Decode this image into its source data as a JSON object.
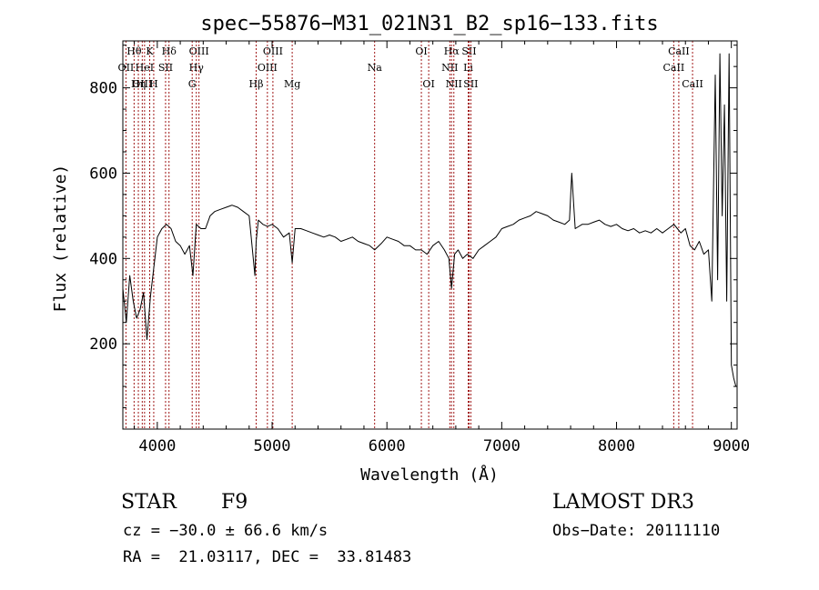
{
  "chart_data": {
    "type": "line",
    "title": "spec−55876−M31_021N31_B2_sp16−133.fits",
    "xlabel": "Wavelength (Å)",
    "ylabel": "Flux (relative)",
    "xlim": [
      3700,
      9050
    ],
    "ylim": [
      0,
      910
    ],
    "xticks": [
      4000,
      5000,
      6000,
      7000,
      8000,
      9000
    ],
    "yticks": [
      200,
      400,
      600,
      800
    ],
    "grid": false,
    "series": [
      {
        "color": "#000000",
        "x": [
          3700,
          3730,
          3760,
          3790,
          3820,
          3850,
          3880,
          3910,
          3940,
          3970,
          4000,
          4040,
          4080,
          4120,
          4160,
          4200,
          4240,
          4280,
          4310,
          4340,
          4380,
          4420,
          4460,
          4500,
          4550,
          4600,
          4650,
          4700,
          4750,
          4800,
          4850,
          4861,
          4880,
          4920,
          4960,
          5000,
          5050,
          5100,
          5150,
          5175,
          5200,
          5250,
          5300,
          5350,
          5400,
          5450,
          5500,
          5550,
          5600,
          5650,
          5700,
          5750,
          5800,
          5850,
          5893,
          5950,
          6000,
          6050,
          6100,
          6150,
          6200,
          6250,
          6300,
          6350,
          6400,
          6450,
          6500,
          6540,
          6563,
          6590,
          6620,
          6660,
          6700,
          6750,
          6800,
          6850,
          6900,
          6950,
          7000,
          7050,
          7100,
          7150,
          7200,
          7250,
          7300,
          7350,
          7400,
          7450,
          7500,
          7550,
          7590,
          7610,
          7640,
          7700,
          7750,
          7800,
          7850,
          7900,
          7950,
          8000,
          8050,
          8100,
          8150,
          8200,
          8250,
          8300,
          8350,
          8400,
          8450,
          8500,
          8530,
          8560,
          8600,
          8640,
          8680,
          8720,
          8760,
          8800,
          8830,
          8860,
          8880,
          8900,
          8920,
          8940,
          8960,
          8980,
          9000,
          9020,
          9040
        ],
        "values": [
          330,
          250,
          360,
          300,
          260,
          280,
          320,
          210,
          310,
          380,
          450,
          470,
          480,
          470,
          440,
          430,
          410,
          430,
          360,
          480,
          470,
          470,
          500,
          510,
          515,
          520,
          525,
          520,
          510,
          500,
          360,
          440,
          490,
          480,
          475,
          480,
          470,
          450,
          460,
          390,
          470,
          470,
          465,
          460,
          455,
          450,
          455,
          450,
          440,
          445,
          450,
          440,
          435,
          430,
          420,
          435,
          450,
          445,
          440,
          430,
          430,
          420,
          420,
          410,
          430,
          440,
          420,
          400,
          330,
          410,
          420,
          400,
          410,
          400,
          420,
          430,
          440,
          450,
          470,
          475,
          480,
          490,
          495,
          500,
          510,
          505,
          500,
          490,
          485,
          480,
          490,
          600,
          470,
          480,
          480,
          485,
          490,
          480,
          475,
          480,
          470,
          465,
          470,
          460,
          465,
          460,
          470,
          460,
          470,
          480,
          470,
          460,
          470,
          430,
          420,
          440,
          410,
          420,
          300,
          830,
          350,
          880,
          500,
          760,
          300,
          880,
          150,
          120,
          100
        ]
      }
    ],
    "spectral_lines": [
      {
        "label": "Hθ",
        "x": 3798,
        "row": 1
      },
      {
        "label": "OII",
        "x": 3727,
        "row": 2
      },
      {
        "label": "OIII",
        "x": 3869,
        "row": 3
      },
      {
        "label": "HeI",
        "x": 3889,
        "row": 2
      },
      {
        "label": "Hη",
        "x": 3835,
        "row": 3
      },
      {
        "label": "K",
        "x": 3934,
        "row": 1
      },
      {
        "label": "SII",
        "x": 4072,
        "row": 2
      },
      {
        "label": "H",
        "x": 3969,
        "row": 3
      },
      {
        "label": "Hδ",
        "x": 4102,
        "row": 1
      },
      {
        "label": "OIII",
        "x": 4363,
        "row": 1
      },
      {
        "label": "Hγ",
        "x": 4340,
        "row": 2
      },
      {
        "label": "G",
        "x": 4304,
        "row": 3
      },
      {
        "label": "OIII",
        "x": 5007,
        "row": 1
      },
      {
        "label": "OIII",
        "x": 4959,
        "row": 2
      },
      {
        "label": "Hβ",
        "x": 4861,
        "row": 3
      },
      {
        "label": "Mg",
        "x": 5175,
        "row": 3
      },
      {
        "label": "Na",
        "x": 5893,
        "row": 2
      },
      {
        "label": "OI",
        "x": 6300,
        "row": 1
      },
      {
        "label": "OI",
        "x": 6364,
        "row": 3
      },
      {
        "label": "Hα",
        "x": 6563,
        "row": 1
      },
      {
        "label": "NII",
        "x": 6548,
        "row": 2
      },
      {
        "label": "NII",
        "x": 6583,
        "row": 3
      },
      {
        "label": "SII",
        "x": 6716,
        "row": 1
      },
      {
        "label": "Li",
        "x": 6708,
        "row": 2
      },
      {
        "label": "SII",
        "x": 6731,
        "row": 3
      },
      {
        "label": "CaII",
        "x": 8542,
        "row": 1
      },
      {
        "label": "CaII",
        "x": 8498,
        "row": 2
      },
      {
        "label": "CaII",
        "x": 8662,
        "row": 3
      }
    ]
  },
  "info": {
    "class_label": "STAR",
    "subclass": "F9",
    "survey": "LAMOST DR3",
    "redshift": "cz = −30.0 ± 66.6 km/s",
    "obs_date": "Obs−Date: 20111110",
    "coords": "RA =  21.03117, DEC =  33.81483"
  }
}
